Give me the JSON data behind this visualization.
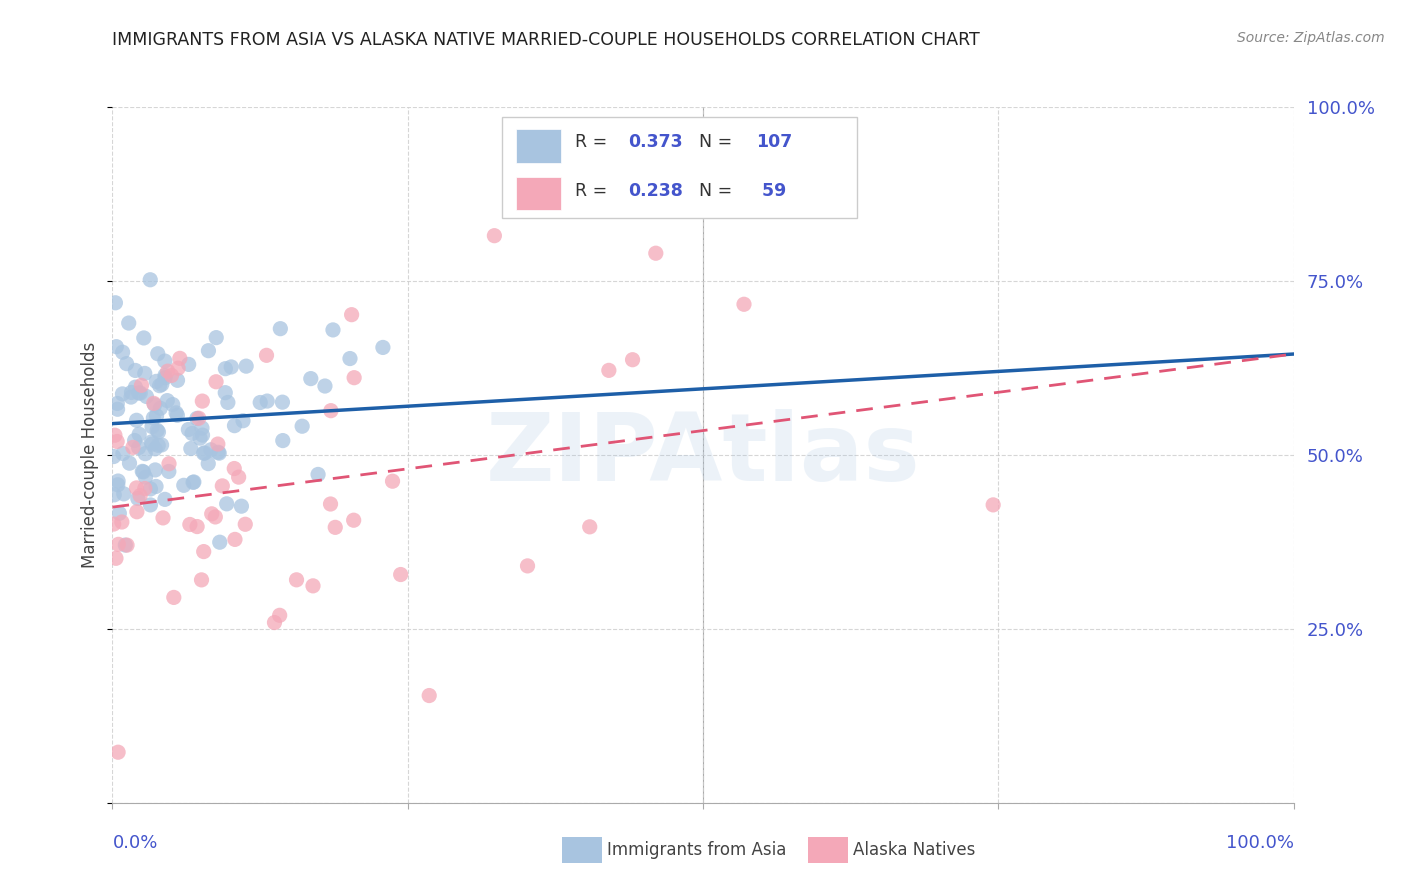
{
  "title": "IMMIGRANTS FROM ASIA VS ALASKA NATIVE MARRIED-COUPLE HOUSEHOLDS CORRELATION CHART",
  "source": "Source: ZipAtlas.com",
  "ylabel": "Married-couple Households",
  "blue_R": 0.373,
  "blue_N": 107,
  "pink_R": 0.238,
  "pink_N": 59,
  "blue_color": "#a8c4e0",
  "blue_line_color": "#1e5fa8",
  "pink_color": "#f4a8b8",
  "pink_line_color": "#e05575",
  "axis_label_color": "#4455cc",
  "title_color": "#222222",
  "source_color": "#888888",
  "grid_color": "#cccccc",
  "background_color": "#ffffff",
  "watermark_color": "#99bbdd",
  "watermark_text": "ZIPAtlas",
  "legend_label_blue": "Immigrants from Asia",
  "legend_label_pink": "Alaska Natives",
  "blue_trend_y0": 0.545,
  "blue_trend_y1": 0.645,
  "pink_trend_y0": 0.425,
  "pink_trend_y1": 0.645,
  "xlim": [
    0,
    1
  ],
  "ylim": [
    0,
    1
  ]
}
